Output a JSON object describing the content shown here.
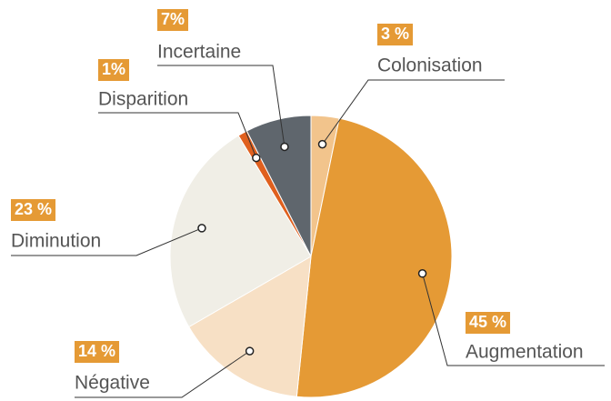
{
  "chart_data": {
    "type": "pie",
    "categories": [
      "Colonisation",
      "Augmentation",
      "Négative",
      "Diminution",
      "Disparition",
      "Incertaine"
    ],
    "values": [
      3,
      45,
      14,
      23,
      1,
      7
    ],
    "value_labels": [
      "3 %",
      "45 %",
      "14 %",
      "23 %",
      "1%",
      "7%"
    ],
    "colors": [
      "#f2c48c",
      "#e59a35",
      "#f7e0c5",
      "#f0eee6",
      "#e0601e",
      "#5f666d"
    ],
    "label_color": "#e59a35"
  }
}
